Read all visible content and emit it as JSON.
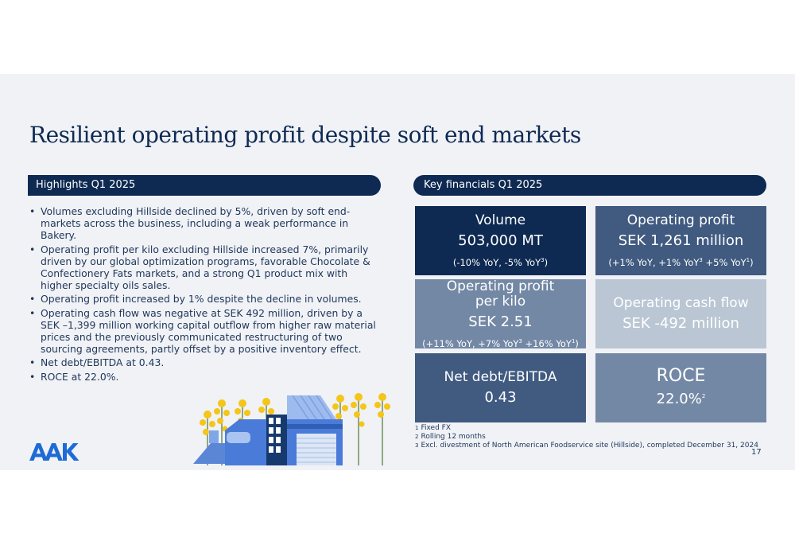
{
  "slide": {
    "title": "Resilient operating profit despite soft end markets",
    "logo_text": "AAK",
    "page_number": "17"
  },
  "highlights": {
    "header": "Highlights Q1 2025",
    "bullets": [
      "Volumes excluding Hillside declined by 5%, driven by soft end-markets across the business, including a weak performance in Bakery.",
      "Operating profit per kilo excluding Hillside increased 7%, primarily driven by our global optimization programs, favorable Chocolate & Confectionery Fats markets, and a strong Q1 product mix with higher specialty oils sales.",
      "Operating profit increased by 1% despite the decline in volumes.",
      "Operating cash flow was negative at SEK 492 million, driven by a SEK –1,399 million working capital outflow from higher raw material prices and the previously communicated restructuring of two sourcing agreements, partly offset by a positive inventory effect.",
      "Net debt/EBITDA at 0.43.",
      "ROCE at 22.0%."
    ]
  },
  "key_financials": {
    "header": "Key financials Q1 2025",
    "tiles": {
      "volume": {
        "label": "Volume",
        "value": "503,000 MT",
        "detail": "(-10% YoY, -5% YoY",
        "detail_sup": "3",
        "detail_end": ")"
      },
      "operating_profit": {
        "label": "Operating profit",
        "value": "SEK 1,261 million",
        "detail": "(+1% YoY, +1% YoY",
        "detail_sup": "3",
        "detail_mid": " +5% YoY",
        "detail_sup2": "1",
        "detail_end": ")"
      },
      "operating_profit_per_kilo": {
        "label_line1": "Operating profit",
        "label_line2": "per kilo",
        "value": "SEK 2.51",
        "detail": "(+11% YoY, +7% YoY",
        "detail_sup": "3",
        "detail_mid": " +16% YoY",
        "detail_sup2": "1",
        "detail_end": ")"
      },
      "operating_cash_flow": {
        "label": "Operating cash flow",
        "value": "SEK -492 million"
      },
      "net_debt_ebitda": {
        "label": "Net debt/EBITDA",
        "value": "0.43"
      },
      "roce": {
        "label": "ROCE",
        "value": "22.0%",
        "value_sup": "2"
      }
    },
    "colors": {
      "navy": "#0e2a52",
      "slate": "#405a80",
      "steel": "#7388a5",
      "light": "#bac6d4"
    }
  },
  "footnotes": [
    {
      "num": "1",
      "text": "Fixed FX"
    },
    {
      "num": "2",
      "text": "Rolling 12 months"
    },
    {
      "num": "3",
      "text": "Excl. divestment of North American Foodservice site (Hillside), completed December 31, 2024"
    }
  ]
}
